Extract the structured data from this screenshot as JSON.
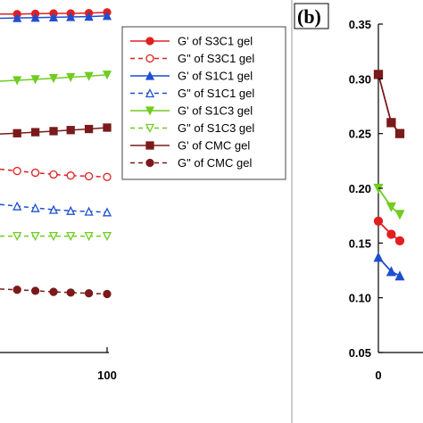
{
  "panel_label_b": "(b)",
  "chart_data": [
    {
      "type": "line",
      "x_range": [
        0,
        100
      ],
      "x_ticks": [
        "100"
      ],
      "grid": false,
      "legend_position": "top-right",
      "series": [
        {
          "name": "G' of S3C1 gel",
          "color": "#e02020",
          "style": "solid",
          "marker": "circle-filled",
          "x": [
            0,
            16,
            33,
            50,
            66,
            83,
            100
          ],
          "y": [
            0.96,
            0.96,
            0.961,
            0.962,
            0.962,
            0.963,
            0.965
          ]
        },
        {
          "name": "G\" of S3C1 gel",
          "color": "#e02020",
          "style": "dashed",
          "marker": "circle-open",
          "x": [
            0,
            16,
            33,
            50,
            66,
            83,
            100
          ],
          "y": [
            0.52,
            0.515,
            0.51,
            0.505,
            0.502,
            0.5,
            0.498
          ]
        },
        {
          "name": "G' of S1C1 gel",
          "color": "#1f4fd0",
          "style": "solid",
          "marker": "triangle-filled",
          "x": [
            0,
            16,
            33,
            50,
            66,
            83,
            100
          ],
          "y": [
            0.948,
            0.949,
            0.95,
            0.951,
            0.952,
            0.953,
            0.955
          ]
        },
        {
          "name": "G\" of S1C1 gel",
          "color": "#1f4fd0",
          "style": "dashed",
          "marker": "triangle-open",
          "x": [
            0,
            16,
            33,
            50,
            66,
            83,
            100
          ],
          "y": [
            0.42,
            0.415,
            0.41,
            0.405,
            0.402,
            0.4,
            0.398
          ]
        },
        {
          "name": "G' of S1C3 gel",
          "color": "#70cc20",
          "style": "solid",
          "marker": "triangle-down-filled",
          "x": [
            0,
            16,
            33,
            50,
            66,
            83,
            100
          ],
          "y": [
            0.77,
            0.772,
            0.775,
            0.778,
            0.781,
            0.784,
            0.788
          ]
        },
        {
          "name": "G\" of S1C3 gel",
          "color": "#70cc20",
          "style": "dashed",
          "marker": "triangle-down-open",
          "x": [
            0,
            16,
            33,
            50,
            66,
            83,
            100
          ],
          "y": [
            0.33,
            0.33,
            0.33,
            0.33,
            0.33,
            0.33,
            0.33
          ]
        },
        {
          "name": "G' of CMC gel",
          "color": "#7b1a1a",
          "style": "solid",
          "marker": "square-filled",
          "x": [
            0,
            16,
            33,
            50,
            66,
            83,
            100
          ],
          "y": [
            0.62,
            0.622,
            0.625,
            0.628,
            0.631,
            0.634,
            0.638
          ]
        },
        {
          "name": "G\" of CMC gel",
          "color": "#7b1a1a",
          "style": "dashed",
          "marker": "circle-filled",
          "x": [
            0,
            16,
            33,
            50,
            66,
            83,
            100
          ],
          "y": [
            0.18,
            0.178,
            0.175,
            0.172,
            0.17,
            0.168,
            0.166
          ]
        }
      ]
    },
    {
      "type": "line",
      "x_range": [
        0,
        100
      ],
      "x_ticks": [
        "0"
      ],
      "y_range": [
        0.05,
        0.35
      ],
      "y_ticks": [
        "0.35",
        "0.30",
        "0.25",
        "0.20",
        "0.15",
        "0.10",
        "0.05"
      ],
      "grid": false,
      "series": [
        {
          "color": "#7b1a1a",
          "marker": "square-filled",
          "x": [
            0,
            12,
            20
          ],
          "y": [
            0.304,
            0.26,
            0.25
          ]
        },
        {
          "color": "#70cc20",
          "marker": "triangle-down-filled",
          "x": [
            0,
            12,
            20
          ],
          "y": [
            0.2,
            0.183,
            0.176
          ]
        },
        {
          "color": "#e02020",
          "marker": "circle-filled",
          "x": [
            0,
            12,
            20
          ],
          "y": [
            0.17,
            0.158,
            0.152
          ]
        },
        {
          "color": "#1f4fd0",
          "marker": "triangle-filled",
          "x": [
            0,
            12,
            20
          ],
          "y": [
            0.137,
            0.124,
            0.12
          ]
        }
      ]
    }
  ]
}
